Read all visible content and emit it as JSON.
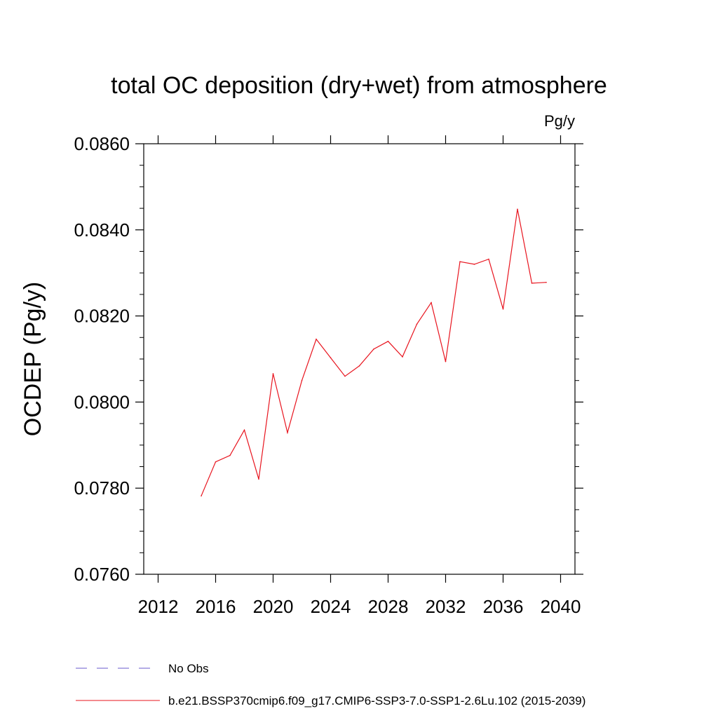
{
  "chart_data": {
    "type": "line",
    "title": "total OC deposition (dry+wet) from atmosphere",
    "units_label": "Pg/y",
    "ylabel": "OCDEP  (Pg/y)",
    "xlabel": "",
    "xlim": [
      2011,
      2041
    ],
    "ylim": [
      0.076,
      0.086
    ],
    "x_ticks": [
      2012,
      2016,
      2020,
      2024,
      2028,
      2032,
      2036,
      2040
    ],
    "x_tick_labels": [
      "2012",
      "2016",
      "2020",
      "2024",
      "2028",
      "2032",
      "2036",
      "2040"
    ],
    "y_ticks": [
      0.076,
      0.078,
      0.08,
      0.082,
      0.084,
      0.086
    ],
    "y_tick_labels": [
      "0.0760",
      "0.0780",
      "0.0800",
      "0.0820",
      "0.0840",
      "0.0860"
    ],
    "grid": false,
    "legend_position": "bottom",
    "series": [
      {
        "name": "No Obs",
        "color": "#6a5acd",
        "dash": "dashed",
        "x": [],
        "y": []
      },
      {
        "name": "b.e21.BSSP370cmip6.f09_g17.CMIP6-SSP3-7.0-SSP1-2.6Lu.102 (2015-2039)",
        "color": "#e8141e",
        "dash": "solid",
        "x": [
          2015,
          2016,
          2017,
          2018,
          2019,
          2020,
          2021,
          2022,
          2023,
          2024,
          2025,
          2026,
          2027,
          2028,
          2029,
          2030,
          2031,
          2032,
          2033,
          2034,
          2035,
          2036,
          2037,
          2038,
          2039
        ],
        "y": [
          0.07782,
          0.07861,
          0.07876,
          0.07935,
          0.07821,
          0.08066,
          0.07929,
          0.0805,
          0.08146,
          0.08103,
          0.0806,
          0.08084,
          0.08123,
          0.08141,
          0.08105,
          0.08181,
          0.08231,
          0.08094,
          0.08326,
          0.0832,
          0.08332,
          0.08216,
          0.08448,
          0.08276,
          0.08278
        ]
      }
    ]
  }
}
